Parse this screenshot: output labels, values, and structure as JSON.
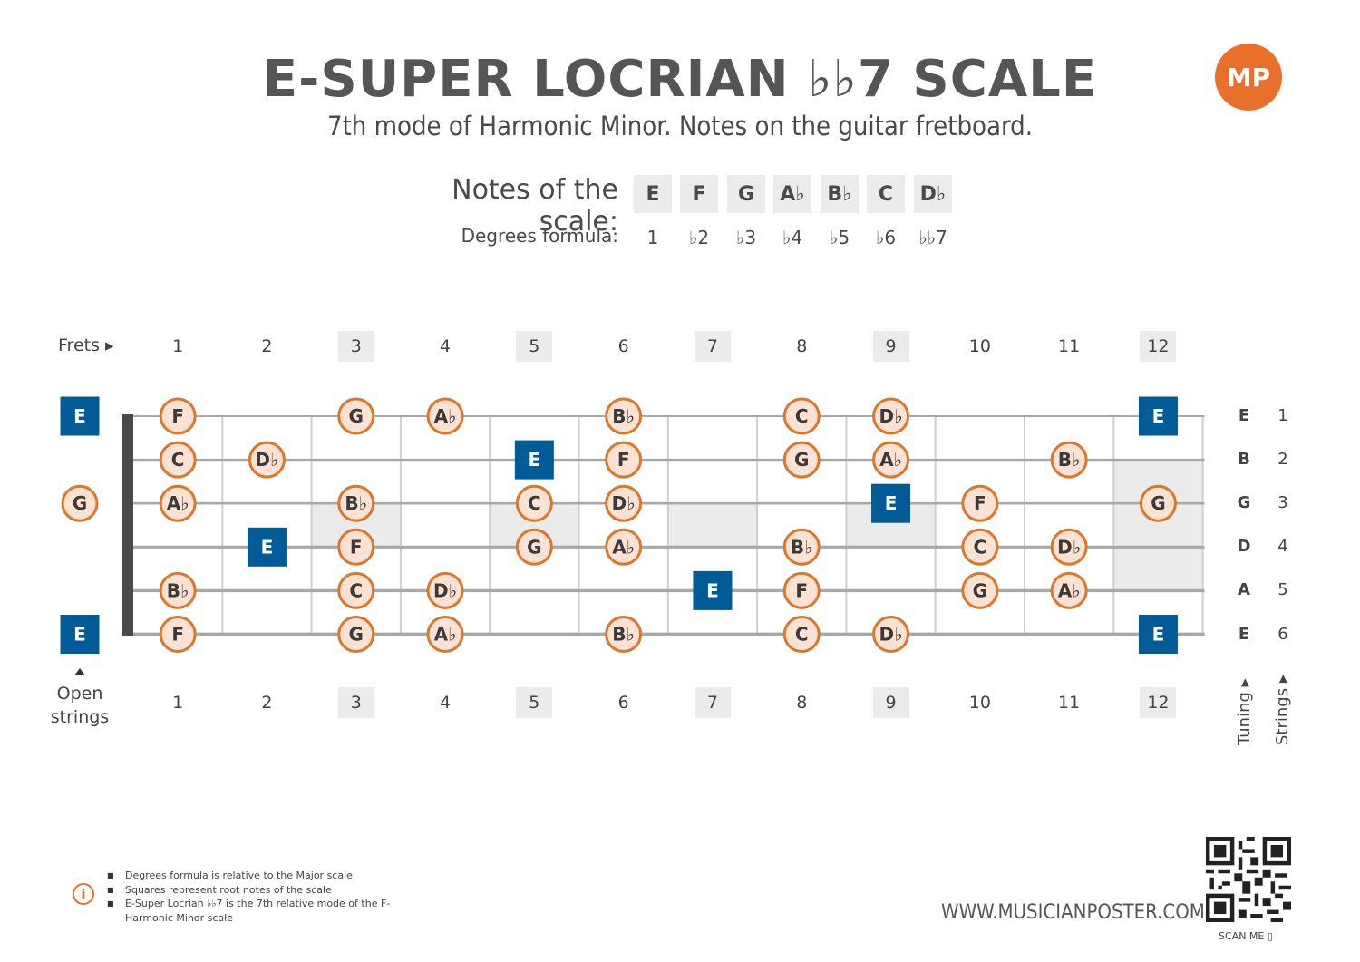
{
  "header": {
    "title": "E-SUPER LOCRIAN ♭♭7 SCALE",
    "subtitle": "7th mode of Harmonic Minor. Notes on the guitar fretboard.",
    "logo_text": "MP"
  },
  "scale": {
    "notes_label": "Notes of the scale:",
    "degrees_label": "Degrees formula:",
    "notes": [
      "E",
      "F",
      "G",
      "A♭",
      "B♭",
      "C",
      "D♭"
    ],
    "degrees": [
      "1",
      "♭2",
      "♭3",
      "♭4",
      "♭5",
      "♭6",
      "♭♭7"
    ]
  },
  "fretboard": {
    "frets_label": "Frets ▸",
    "open_label_line1": "Open",
    "open_label_line2": "strings",
    "tuning_label": "Tuning ▸",
    "strings_label": "Strings ▸",
    "fret_numbers": [
      "1",
      "2",
      "3",
      "4",
      "5",
      "6",
      "7",
      "8",
      "9",
      "10",
      "11",
      "12"
    ],
    "highlighted_frets": [
      3,
      5,
      7,
      9,
      12
    ],
    "tuning": [
      "E",
      "B",
      "G",
      "D",
      "A",
      "E"
    ],
    "string_numbers": [
      "1",
      "2",
      "3",
      "4",
      "5",
      "6"
    ],
    "open_notes": [
      {
        "string": 1,
        "note": "E",
        "root": true
      },
      {
        "string": 3,
        "note": "G",
        "root": false
      },
      {
        "string": 6,
        "note": "E",
        "root": true
      }
    ],
    "notes": [
      {
        "string": 1,
        "fret": 1,
        "note": "F",
        "root": false
      },
      {
        "string": 1,
        "fret": 3,
        "note": "G",
        "root": false
      },
      {
        "string": 1,
        "fret": 4,
        "note": "A♭",
        "root": false
      },
      {
        "string": 1,
        "fret": 6,
        "note": "B♭",
        "root": false
      },
      {
        "string": 1,
        "fret": 8,
        "note": "C",
        "root": false
      },
      {
        "string": 1,
        "fret": 9,
        "note": "D♭",
        "root": false
      },
      {
        "string": 1,
        "fret": 12,
        "note": "E",
        "root": true
      },
      {
        "string": 2,
        "fret": 1,
        "note": "C",
        "root": false
      },
      {
        "string": 2,
        "fret": 2,
        "note": "D♭",
        "root": false
      },
      {
        "string": 2,
        "fret": 5,
        "note": "E",
        "root": true
      },
      {
        "string": 2,
        "fret": 6,
        "note": "F",
        "root": false
      },
      {
        "string": 2,
        "fret": 8,
        "note": "G",
        "root": false
      },
      {
        "string": 2,
        "fret": 9,
        "note": "A♭",
        "root": false
      },
      {
        "string": 2,
        "fret": 11,
        "note": "B♭",
        "root": false
      },
      {
        "string": 3,
        "fret": 1,
        "note": "A♭",
        "root": false
      },
      {
        "string": 3,
        "fret": 3,
        "note": "B♭",
        "root": false
      },
      {
        "string": 3,
        "fret": 5,
        "note": "C",
        "root": false
      },
      {
        "string": 3,
        "fret": 6,
        "note": "D♭",
        "root": false
      },
      {
        "string": 3,
        "fret": 9,
        "note": "E",
        "root": true
      },
      {
        "string": 3,
        "fret": 10,
        "note": "F",
        "root": false
      },
      {
        "string": 3,
        "fret": 12,
        "note": "G",
        "root": false
      },
      {
        "string": 4,
        "fret": 2,
        "note": "E",
        "root": true
      },
      {
        "string": 4,
        "fret": 3,
        "note": "F",
        "root": false
      },
      {
        "string": 4,
        "fret": 5,
        "note": "G",
        "root": false
      },
      {
        "string": 4,
        "fret": 6,
        "note": "A♭",
        "root": false
      },
      {
        "string": 4,
        "fret": 8,
        "note": "B♭",
        "root": false
      },
      {
        "string": 4,
        "fret": 10,
        "note": "C",
        "root": false
      },
      {
        "string": 4,
        "fret": 11,
        "note": "D♭",
        "root": false
      },
      {
        "string": 5,
        "fret": 1,
        "note": "B♭",
        "root": false
      },
      {
        "string": 5,
        "fret": 3,
        "note": "C",
        "root": false
      },
      {
        "string": 5,
        "fret": 4,
        "note": "D♭",
        "root": false
      },
      {
        "string": 5,
        "fret": 7,
        "note": "E",
        "root": true
      },
      {
        "string": 5,
        "fret": 8,
        "note": "F",
        "root": false
      },
      {
        "string": 5,
        "fret": 10,
        "note": "G",
        "root": false
      },
      {
        "string": 5,
        "fret": 11,
        "note": "A♭",
        "root": false
      },
      {
        "string": 6,
        "fret": 1,
        "note": "F",
        "root": false
      },
      {
        "string": 6,
        "fret": 3,
        "note": "G",
        "root": false
      },
      {
        "string": 6,
        "fret": 4,
        "note": "A♭",
        "root": false
      },
      {
        "string": 6,
        "fret": 6,
        "note": "B♭",
        "root": false
      },
      {
        "string": 6,
        "fret": 8,
        "note": "C",
        "root": false
      },
      {
        "string": 6,
        "fret": 9,
        "note": "D♭",
        "root": false
      },
      {
        "string": 6,
        "fret": 12,
        "note": "E",
        "root": true
      }
    ]
  },
  "colors": {
    "root_fill": "#005b96",
    "note_fill": "#fbe2d2",
    "note_border": "#d9782a",
    "inlay_fill": "#ebebeb",
    "string_color": "#a8a8a8",
    "nut_color": "#4a4a4a",
    "accent": "#e8702a"
  },
  "footer": {
    "notes": [
      "Degrees formula is relative to the Major scale",
      "Squares represent root notes of the scale",
      "E-Super Locrian ♭♭7 is the 7th relative mode of the F-Harmonic Minor scale"
    ],
    "website": "WWW.MUSICIANPOSTER.COM",
    "scan_label": "SCAN ME ▯"
  }
}
